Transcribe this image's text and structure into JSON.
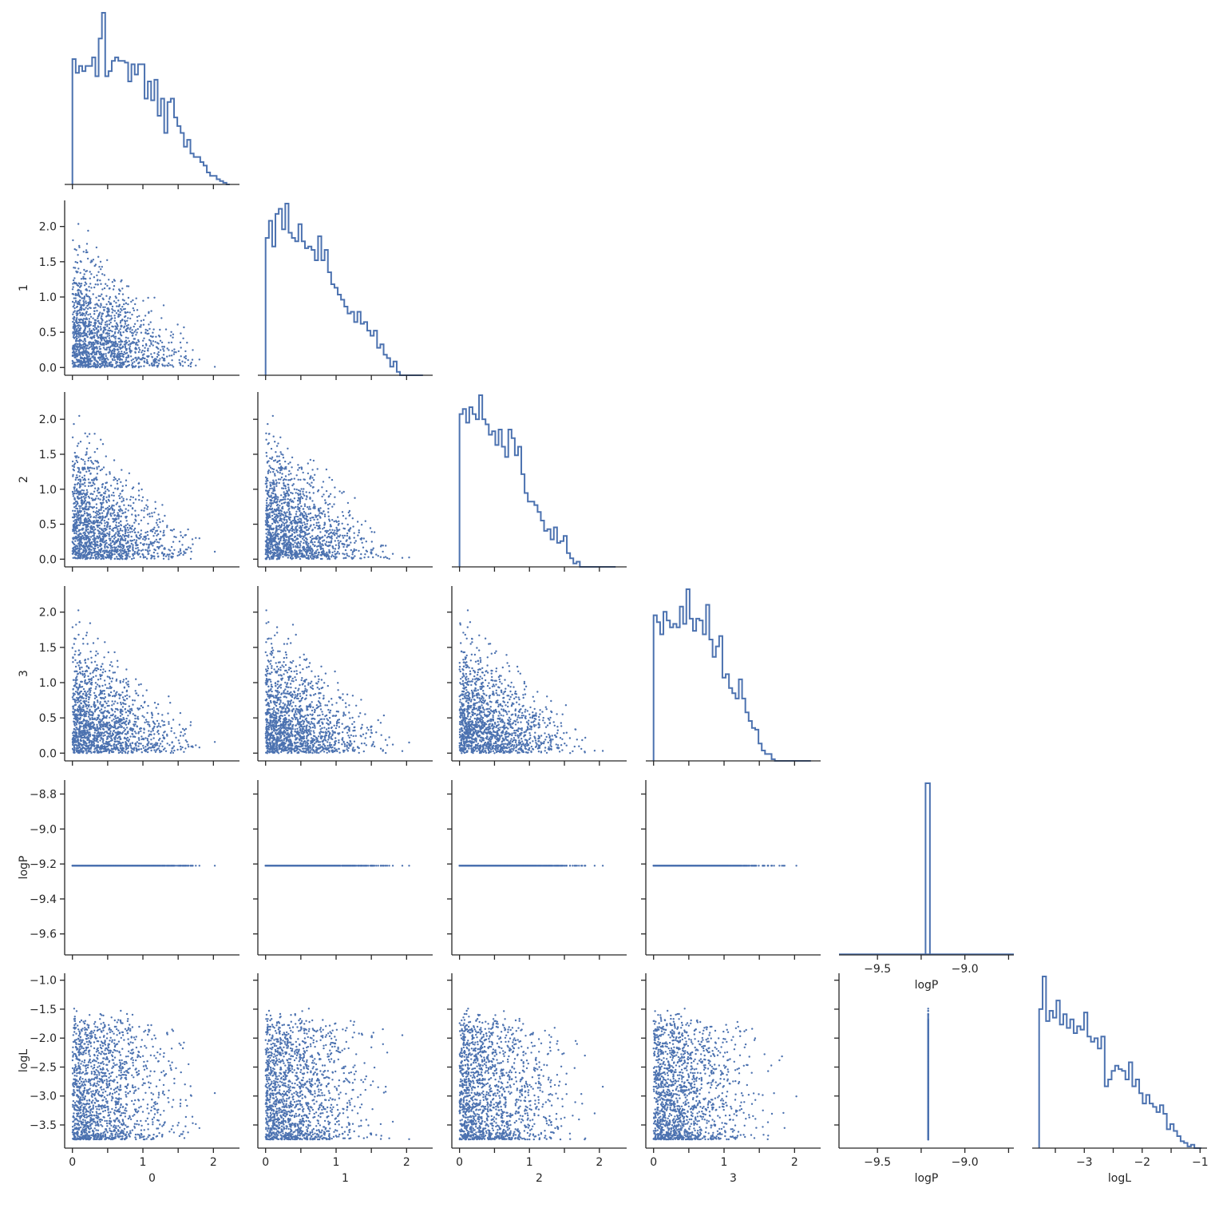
{
  "chart_data": {
    "type": "scatter",
    "layout": "corner pair plot (lower triangle scatter, diagonal step histograms)",
    "variables": [
      "0",
      "1",
      "2",
      "3",
      "logP",
      "logL"
    ],
    "colors": {
      "marker": "#4c72b0",
      "axis": "#262626"
    },
    "grid": false,
    "legend": "none",
    "n_points": 1500,
    "axis_ranges": {
      "0": [
        -0.11,
        2.37
      ],
      "1": [
        -0.11,
        2.37
      ],
      "2": [
        -0.11,
        2.39
      ],
      "3": [
        -0.11,
        2.37
      ],
      "logP": [
        -9.72,
        -8.72
      ],
      "logL": [
        -3.9,
        -0.88
      ]
    },
    "ticks": {
      "0": {
        "values": [
          0,
          0.5,
          1,
          1.5,
          2
        ],
        "x_labels": [
          "0",
          "",
          "1",
          "",
          "2"
        ],
        "y_labels": [
          "0.0",
          "0.5",
          "1.0",
          "1.5",
          "2.0"
        ]
      },
      "1": {
        "values": [
          0,
          0.5,
          1,
          1.5,
          2
        ],
        "x_labels": [
          "0",
          "",
          "1",
          "",
          "2"
        ],
        "y_labels": [
          "0.0",
          "0.5",
          "1.0",
          "1.5",
          "2.0"
        ]
      },
      "2": {
        "values": [
          0,
          0.5,
          1,
          1.5,
          2
        ],
        "x_labels": [
          "0",
          "",
          "1",
          "",
          "2"
        ],
        "y_labels": [
          "0.0",
          "0.5",
          "1.0",
          "1.5",
          "2.0"
        ]
      },
      "3": {
        "values": [
          0,
          0.5,
          1,
          1.5,
          2
        ],
        "x_labels": [
          "0",
          "",
          "1",
          "",
          "2"
        ],
        "y_labels": [
          "0.0",
          "0.5",
          "1.0",
          "1.5",
          "2.0"
        ]
      },
      "logP": {
        "values": [
          -9.6,
          -9.4,
          -9.2,
          -9.0,
          -8.8
        ],
        "x_labels": [
          "",
          "−9.5",
          "",
          "−9.0",
          ""
        ],
        "y_labels": [
          "−9.6",
          "−9.4",
          "−9.2",
          "−9.0",
          "−8.8"
        ],
        "x_values": [
          -9.75,
          -9.5,
          -9.25,
          -9.0,
          -8.75
        ]
      },
      "logL": {
        "values": [
          -3.5,
          -3.0,
          -2.5,
          -2.0,
          -1.5,
          -1.0
        ],
        "x_labels": [
          "",
          "−3",
          "",
          "−2",
          "",
          "−1"
        ],
        "y_labels": [
          "−3.5",
          "−3.0",
          "−2.5",
          "−2.0",
          "−1.5",
          "−1.0"
        ]
      }
    },
    "logP_constant_value": -9.21,
    "histograms": {
      "0": {
        "start": 0.0,
        "bin_width": 0.0465,
        "counts": [
          0.73,
          0.65,
          0.69,
          0.66,
          0.69,
          0.69,
          0.74,
          0.63,
          0.85,
          1.0,
          0.63,
          0.66,
          0.72,
          0.74,
          0.72,
          0.72,
          0.71,
          0.6,
          0.7,
          0.64,
          0.7,
          0.7,
          0.5,
          0.6,
          0.49,
          0.61,
          0.4,
          0.5,
          0.3,
          0.48,
          0.5,
          0.39,
          0.34,
          0.3,
          0.22,
          0.26,
          0.18,
          0.16,
          0.16,
          0.13,
          0.11,
          0.07,
          0.05,
          0.05,
          0.03,
          0.02,
          0.01,
          0.0
        ]
      },
      "1": {
        "start": 0.0,
        "bin_width": 0.0465,
        "counts": [
          0.8,
          0.9,
          0.75,
          0.94,
          0.97,
          0.85,
          1.0,
          0.83,
          0.8,
          0.78,
          0.88,
          0.78,
          0.74,
          0.75,
          0.73,
          0.67,
          0.81,
          0.67,
          0.73,
          0.6,
          0.53,
          0.51,
          0.47,
          0.44,
          0.4,
          0.36,
          0.37,
          0.31,
          0.37,
          0.3,
          0.31,
          0.26,
          0.23,
          0.26,
          0.16,
          0.18,
          0.12,
          0.1,
          0.05,
          0.08,
          0.02,
          0.0,
          0.0,
          0.0,
          0.0,
          0.0,
          0.0,
          0.0
        ]
      },
      "2": {
        "start": 0.0,
        "bin_width": 0.0465,
        "counts": [
          0.89,
          0.92,
          0.84,
          0.93,
          0.89,
          0.86,
          1.0,
          0.86,
          0.83,
          0.77,
          0.79,
          0.71,
          0.8,
          0.7,
          0.64,
          0.8,
          0.75,
          0.65,
          0.7,
          0.54,
          0.43,
          0.38,
          0.38,
          0.36,
          0.32,
          0.27,
          0.21,
          0.22,
          0.16,
          0.23,
          0.14,
          0.15,
          0.18,
          0.08,
          0.05,
          0.02,
          0.03,
          0.0,
          0.0,
          0.0,
          0.0,
          0.0,
          0.0,
          0.0,
          0.0,
          0.0,
          0.0,
          0.0
        ]
      },
      "3": {
        "start": 0.0,
        "bin_width": 0.0465,
        "counts": [
          0.84,
          0.8,
          0.73,
          0.86,
          0.81,
          0.77,
          0.79,
          0.77,
          0.89,
          0.79,
          0.99,
          0.82,
          0.75,
          0.82,
          0.81,
          0.73,
          0.9,
          0.7,
          0.6,
          0.66,
          0.72,
          0.48,
          0.5,
          0.42,
          0.39,
          0.36,
          0.47,
          0.36,
          0.28,
          0.23,
          0.19,
          0.18,
          0.1,
          0.06,
          0.04,
          0.04,
          0.01,
          0.0,
          0.0,
          0.0,
          0.0,
          0.0,
          0.0,
          0.0,
          0.0,
          0.0,
          0.0,
          0.0
        ]
      },
      "logP": {
        "start": -9.225,
        "bin_width": 0.025,
        "counts": [
          1.0
        ]
      },
      "logL": {
        "start": -3.78,
        "bin_width": 0.0596,
        "counts": [
          0.81,
          1.0,
          0.74,
          0.8,
          0.76,
          0.86,
          0.72,
          0.78,
          0.7,
          0.75,
          0.67,
          0.71,
          0.69,
          0.79,
          0.65,
          0.62,
          0.64,
          0.58,
          0.65,
          0.36,
          0.4,
          0.45,
          0.48,
          0.46,
          0.45,
          0.4,
          0.5,
          0.36,
          0.4,
          0.32,
          0.26,
          0.31,
          0.26,
          0.24,
          0.21,
          0.25,
          0.2,
          0.11,
          0.14,
          0.1,
          0.07,
          0.04,
          0.03,
          0.01,
          0.02,
          0.0,
          0.0
        ]
      }
    }
  }
}
